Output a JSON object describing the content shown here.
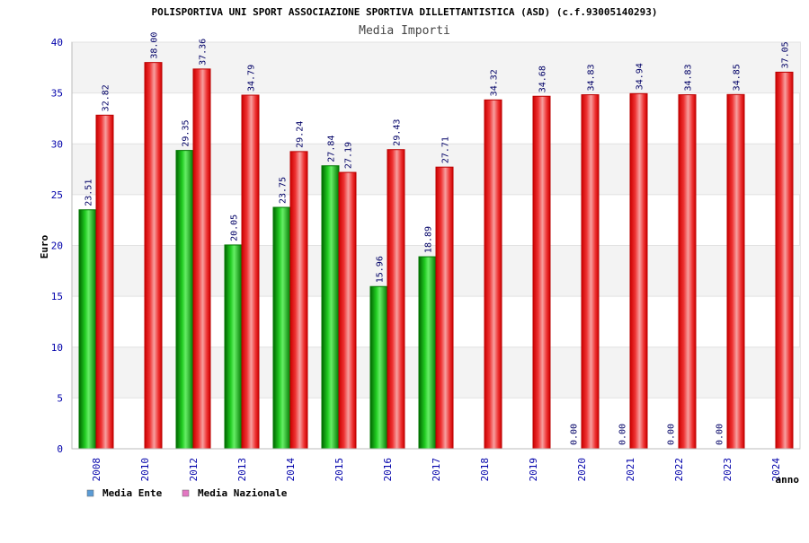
{
  "chart_data": {
    "type": "bar",
    "title": "POLISPORTIVA UNI SPORT ASSOCIAZIONE SPORTIVA DILLETTANTISTICA (ASD) (c.f.93005140293)",
    "subtitle": "Media Importi",
    "xlabel": "anno",
    "ylabel": "Euro",
    "ylim": [
      0,
      40
    ],
    "yticks": [
      0,
      5,
      10,
      15,
      20,
      25,
      30,
      35,
      40
    ],
    "categories": [
      "2008",
      "2010",
      "2012",
      "2013",
      "2014",
      "2015",
      "2016",
      "2017",
      "2018",
      "2019",
      "2020",
      "2021",
      "2022",
      "2023",
      "2024"
    ],
    "series": [
      {
        "name": "Media Ente",
        "color": "#00aa00",
        "legend_color": "#5b9bd5",
        "values": [
          23.51,
          null,
          29.35,
          20.05,
          23.75,
          27.84,
          15.96,
          18.89,
          null,
          null,
          0.0,
          0.0,
          0.0,
          0.0,
          null
        ],
        "labels": [
          "23.51",
          "",
          "29.35",
          "20.05",
          "23.75",
          "27.84",
          "15.96",
          "18.89",
          "",
          "",
          "0.00",
          "0.00",
          "0.00",
          "0.00",
          ""
        ]
      },
      {
        "name": "Media Nazionale",
        "color": "#ee1111",
        "legend_color": "#e377c2",
        "values": [
          32.82,
          38.0,
          37.36,
          34.79,
          29.24,
          27.19,
          29.43,
          27.71,
          34.32,
          34.68,
          34.83,
          34.94,
          34.83,
          34.85,
          37.05
        ],
        "labels": [
          "32.82",
          "38.00",
          "37.36",
          "34.79",
          "29.24",
          "27.19",
          "29.43",
          "27.71",
          "34.32",
          "34.68",
          "34.83",
          "34.94",
          "34.83",
          "34.85",
          "37.05"
        ]
      }
    ],
    "grid": true,
    "legend_position": "bottom-left"
  }
}
